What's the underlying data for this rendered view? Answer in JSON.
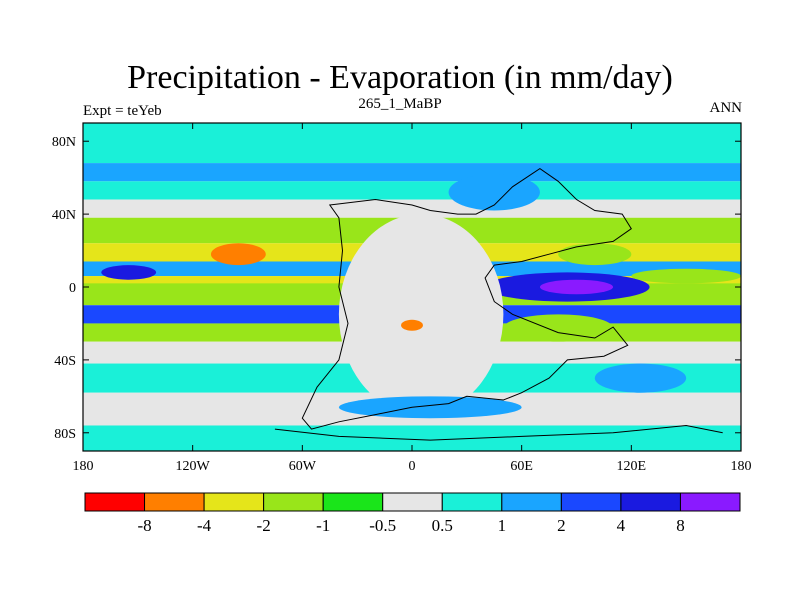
{
  "title": "Precipitation - Evaporation (in mm/day)",
  "subtitle": "265_1_MaBP",
  "left_label": "Expt = teYeb",
  "right_label": "ANN",
  "chart_data": {
    "type": "heatmap",
    "title": "Precipitation - Evaporation (in mm/day)",
    "subtitle": "265_1_MaBP",
    "variable": "Precipitation - Evaporation",
    "units": "mm/day",
    "experiment": "teYeb",
    "period": "ANN",
    "projection": "cylindrical equidistant",
    "lon_range": [
      -180,
      180
    ],
    "lat_range": [
      -90,
      90
    ],
    "x_ticks": [
      {
        "value": -180,
        "label": "180"
      },
      {
        "value": -120,
        "label": "120W"
      },
      {
        "value": -60,
        "label": "60W"
      },
      {
        "value": 0,
        "label": "0"
      },
      {
        "value": 60,
        "label": "60E"
      },
      {
        "value": 120,
        "label": "120E"
      },
      {
        "value": 180,
        "label": "180"
      }
    ],
    "y_ticks": [
      {
        "value": 80,
        "label": "80N"
      },
      {
        "value": 40,
        "label": "40N"
      },
      {
        "value": 0,
        "label": "0"
      },
      {
        "value": -40,
        "label": "40S"
      },
      {
        "value": -80,
        "label": "80S"
      }
    ],
    "colorbar": {
      "levels": [
        -8,
        -4,
        -2,
        -1,
        -0.5,
        0.5,
        1,
        2,
        4,
        8
      ],
      "labels": [
        "-8",
        "-4",
        "-2",
        "-1",
        "-0.5",
        "0.5",
        "1",
        "2",
        "4",
        "8"
      ],
      "colors": [
        "#ff0000",
        "#ff7f00",
        "#e5e51a",
        "#99e51a",
        "#1ae51a",
        "#e6e6e6",
        "#1af0d8",
        "#1aa5ff",
        "#1a48ff",
        "#1a1ae0",
        "#8a1aff"
      ]
    },
    "zonal_bands": [
      {
        "lat": [
          68,
          90
        ],
        "class": 6
      },
      {
        "lat": [
          58,
          68
        ],
        "class": 7
      },
      {
        "lat": [
          48,
          58
        ],
        "class": 6
      },
      {
        "lat": [
          38,
          48
        ],
        "class": 5
      },
      {
        "lat": [
          24,
          38
        ],
        "class": 3
      },
      {
        "lat": [
          14,
          24
        ],
        "class": 2
      },
      {
        "lat": [
          6,
          14
        ],
        "class": 7
      },
      {
        "lat": [
          -2,
          6
        ],
        "class": 2
      },
      {
        "lat": [
          -10,
          2
        ],
        "class": 3
      },
      {
        "lat": [
          -20,
          -10
        ],
        "class": 8
      },
      {
        "lat": [
          -30,
          -20
        ],
        "class": 3
      },
      {
        "lat": [
          -42,
          -30
        ],
        "class": 5
      },
      {
        "lat": [
          -58,
          -42
        ],
        "class": 6
      },
      {
        "lat": [
          -76,
          -58
        ],
        "class": 5
      },
      {
        "lat": [
          -90,
          -76
        ],
        "class": 6
      }
    ],
    "regional_features": [
      {
        "name": "central pacific evaporation max",
        "lon": [
          -110,
          -80
        ],
        "lat": [
          12,
          24
        ],
        "class": 1
      },
      {
        "name": "west pacific intertropical convergence",
        "lon": [
          -170,
          -140
        ],
        "lat": [
          4,
          12
        ],
        "class": 9
      },
      {
        "name": "tethys intertropical convergence",
        "lon": [
          40,
          130
        ],
        "lat": [
          -8,
          8
        ],
        "class": 9
      },
      {
        "name": "tethys convergence core",
        "lon": [
          70,
          110
        ],
        "lat": [
          -4,
          4
        ],
        "class": 10
      },
      {
        "name": "tethys eastern outflow",
        "lon": [
          120,
          180
        ],
        "lat": [
          2,
          10
        ],
        "class": 3
      },
      {
        "name": "southern tethys dry zone",
        "lon": [
          50,
          110
        ],
        "lat": [
          -30,
          -15
        ],
        "class": 3
      },
      {
        "name": "northern coastal dry zone",
        "lon": [
          80,
          120
        ],
        "lat": [
          12,
          24
        ],
        "class": 3
      },
      {
        "name": "pangaea interior",
        "lon": [
          -40,
          50
        ],
        "lat": [
          -70,
          40
        ],
        "class": 5
      },
      {
        "name": "pangaea interior dry patch",
        "lon": [
          -6,
          6
        ],
        "lat": [
          -24,
          -18
        ],
        "class": 1
      },
      {
        "name": "laurasia interior wet patch",
        "lon": [
          20,
          70
        ],
        "lat": [
          42,
          62
        ],
        "class": 7
      },
      {
        "name": "gondwana south wet patch",
        "lon": [
          -40,
          60
        ],
        "lat": [
          -72,
          -60
        ],
        "class": 7
      },
      {
        "name": "southern continent east wet patch",
        "lon": [
          100,
          150
        ],
        "lat": [
          -58,
          -42
        ],
        "class": 7
      }
    ]
  }
}
